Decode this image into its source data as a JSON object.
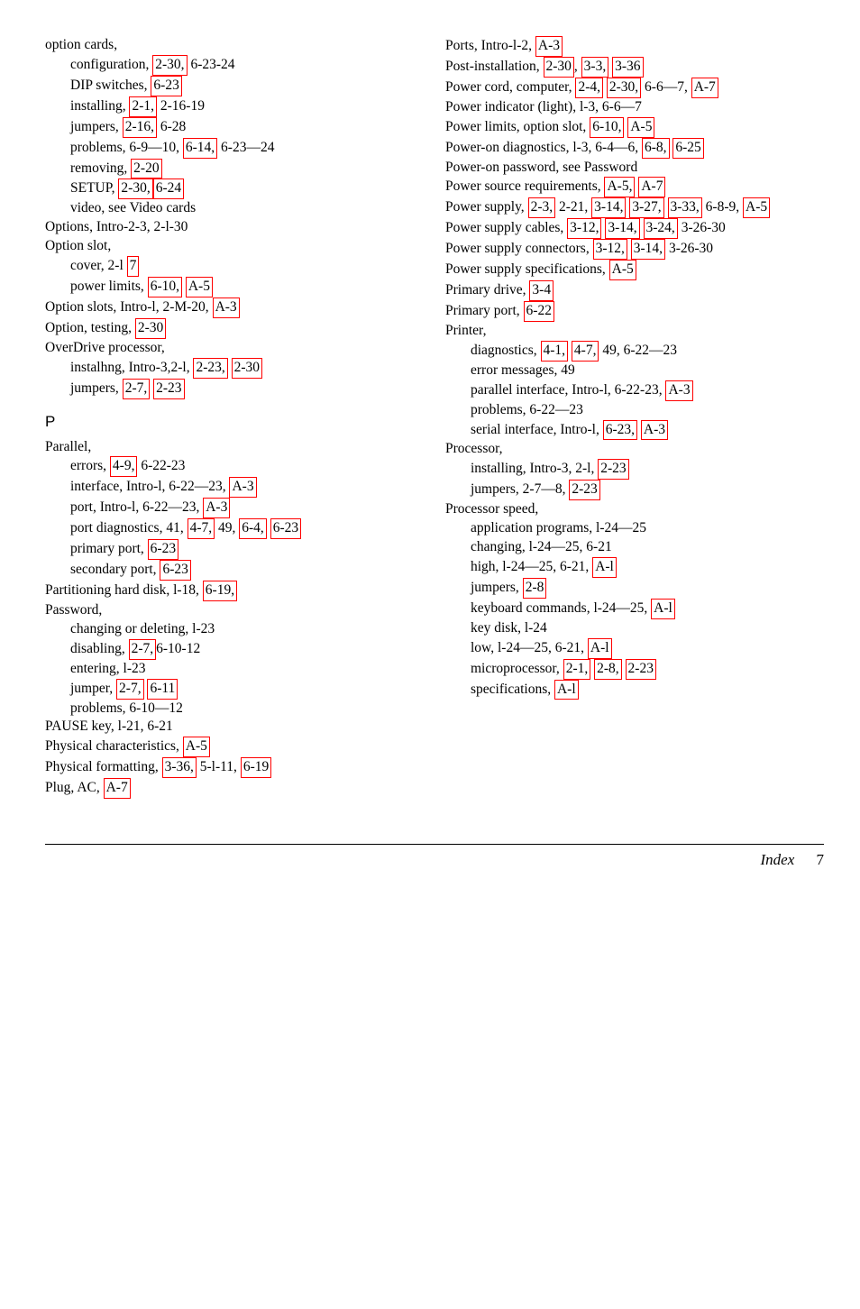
{
  "leftColumn": [
    {
      "type": "entry",
      "parts": [
        {
          "t": "option cards,"
        }
      ]
    },
    {
      "type": "sub",
      "parts": [
        {
          "t": "configuration, "
        },
        {
          "t": "2-30,",
          "l": 1
        },
        {
          "t": " 6-23-24"
        }
      ]
    },
    {
      "type": "sub",
      "parts": [
        {
          "t": "DIP switches, "
        },
        {
          "t": "6-23",
          "l": 1
        }
      ]
    },
    {
      "type": "sub",
      "parts": [
        {
          "t": "installing, "
        },
        {
          "t": "2-1,",
          "l": 1
        },
        {
          "t": " 2-16-19"
        }
      ]
    },
    {
      "type": "sub",
      "parts": [
        {
          "t": "jumpers, "
        },
        {
          "t": "2-16,",
          "l": 1
        },
        {
          "t": " 6-28"
        }
      ]
    },
    {
      "type": "sub",
      "parts": [
        {
          "t": "problems, 6-9—10, "
        },
        {
          "t": "6-14,",
          "l": 1
        },
        {
          "t": " 6-23—24"
        }
      ]
    },
    {
      "type": "sub",
      "parts": [
        {
          "t": "removing, "
        },
        {
          "t": "2-20",
          "l": 1
        }
      ]
    },
    {
      "type": "sub",
      "parts": [
        {
          "t": "SETUP, "
        },
        {
          "t": "2-30,",
          "l": 1
        },
        {
          "t": "6-24",
          "l": 1
        }
      ]
    },
    {
      "type": "sub",
      "parts": [
        {
          "t": "video, see Video cards"
        }
      ]
    },
    {
      "type": "entry",
      "parts": [
        {
          "t": "Options, Intro-2-3, 2-l-30"
        }
      ]
    },
    {
      "type": "entry",
      "parts": [
        {
          "t": "Option slot,"
        }
      ]
    },
    {
      "type": "sub",
      "parts": [
        {
          "t": "cover, 2-l "
        },
        {
          "t": "7",
          "l": 1
        }
      ]
    },
    {
      "type": "sub",
      "parts": [
        {
          "t": "power limits, "
        },
        {
          "t": "6-10,",
          "l": 1
        },
        {
          "t": " "
        },
        {
          "t": "A-5",
          "l": 1
        }
      ]
    },
    {
      "type": "entry",
      "parts": [
        {
          "t": "Option slots, Intro-l, 2-M-20, "
        },
        {
          "t": "A-3",
          "l": 1
        }
      ]
    },
    {
      "type": "entry",
      "parts": [
        {
          "t": "Option, testing, "
        },
        {
          "t": "2-30",
          "l": 1
        }
      ]
    },
    {
      "type": "entry",
      "parts": [
        {
          "t": "OverDrive  processor,"
        }
      ]
    },
    {
      "type": "sub",
      "parts": [
        {
          "t": "instalhng, Intro-3,2-l, "
        },
        {
          "t": "2-23,",
          "l": 1
        },
        {
          "t": " "
        },
        {
          "t": "2-30",
          "l": 1
        }
      ]
    },
    {
      "type": "sub",
      "parts": [
        {
          "t": "jumpers, "
        },
        {
          "t": "2-7,",
          "l": 1
        },
        {
          "t": " "
        },
        {
          "t": "2-23",
          "l": 1
        }
      ]
    },
    {
      "type": "letter",
      "parts": [
        {
          "t": "P"
        }
      ]
    },
    {
      "type": "entry",
      "parts": [
        {
          "t": "Parallel,"
        }
      ]
    },
    {
      "type": "sub",
      "parts": [
        {
          "t": "errors, "
        },
        {
          "t": "4-9,",
          "l": 1
        },
        {
          "t": " 6-22-23"
        }
      ]
    },
    {
      "type": "sub",
      "parts": [
        {
          "t": "interface, Intro-l, 6-22—23, "
        },
        {
          "t": "A-3",
          "l": 1
        }
      ]
    },
    {
      "type": "sub",
      "parts": [
        {
          "t": "port, Intro-l, 6-22—23, "
        },
        {
          "t": "A-3",
          "l": 1
        }
      ]
    },
    {
      "type": "sub",
      "parts": [
        {
          "t": "port diagnostics, 41, "
        },
        {
          "t": "4-7,",
          "l": 1
        },
        {
          "t": " 49, "
        },
        {
          "t": "6-4,",
          "l": 1
        },
        {
          "t": " "
        },
        {
          "t": "6-23",
          "l": 1
        }
      ]
    },
    {
      "type": "sub",
      "parts": [
        {
          "t": "primary port, "
        },
        {
          "t": "6-23",
          "l": 1
        }
      ]
    },
    {
      "type": "sub",
      "parts": [
        {
          "t": "secondary port, "
        },
        {
          "t": "6-23",
          "l": 1
        }
      ]
    },
    {
      "type": "entry",
      "parts": [
        {
          "t": "Partitioning hard disk, l-18, "
        },
        {
          "t": "6-19,",
          "l": 1
        }
      ]
    },
    {
      "type": "entry",
      "parts": [
        {
          "t": "Password,"
        }
      ]
    },
    {
      "type": "sub",
      "parts": [
        {
          "t": "changing or deleting, l-23"
        }
      ]
    },
    {
      "type": "sub",
      "parts": [
        {
          "t": "disabling, "
        },
        {
          "t": "2-7,",
          "l": 1
        },
        {
          "t": "6-10-12"
        }
      ]
    },
    {
      "type": "sub",
      "parts": [
        {
          "t": "entering, l-23"
        }
      ]
    },
    {
      "type": "sub",
      "parts": [
        {
          "t": "jumper, "
        },
        {
          "t": "2-7,",
          "l": 1
        },
        {
          "t": " "
        },
        {
          "t": "6-11",
          "l": 1
        }
      ]
    },
    {
      "type": "sub",
      "parts": [
        {
          "t": "problems, 6-10—12"
        }
      ]
    },
    {
      "type": "entry",
      "parts": [
        {
          "t": "PAUSE key, l-21, 6-21"
        }
      ]
    },
    {
      "type": "entry",
      "parts": [
        {
          "t": "Physical characteristics, "
        },
        {
          "t": "A-5",
          "l": 1
        }
      ]
    },
    {
      "type": "entry",
      "parts": [
        {
          "t": "Physical formatting, "
        },
        {
          "t": "3-36,",
          "l": 1
        },
        {
          "t": " 5-l-11, "
        },
        {
          "t": "6-19",
          "l": 1
        }
      ]
    },
    {
      "type": "entry",
      "parts": [
        {
          "t": "Plug,  AC, "
        },
        {
          "t": " A-7",
          "l": 1
        }
      ]
    }
  ],
  "rightColumn": [
    {
      "type": "entry",
      "parts": [
        {
          "t": "Ports, Intro-l-2, "
        },
        {
          "t": "A-3",
          "l": 1
        }
      ]
    },
    {
      "type": "entry",
      "parts": [
        {
          "t": "Post-installation, "
        },
        {
          "t": "2-30 ",
          "l": 1
        },
        {
          "t": ", "
        },
        {
          "t": "3-3,",
          "l": 1
        },
        {
          "t": " "
        },
        {
          "t": "3-36",
          "l": 1
        }
      ]
    },
    {
      "type": "entry",
      "parts": [
        {
          "t": "Power cord, computer, "
        },
        {
          "t": "2-4,",
          "l": 1
        },
        {
          "t": " "
        },
        {
          "t": "2-30,",
          "l": 1
        },
        {
          "t": " 6-6—7, "
        },
        {
          "t": "A-7",
          "l": 1
        }
      ]
    },
    {
      "type": "entry",
      "parts": [
        {
          "t": "Power indicator (light), l-3, 6-6—7"
        }
      ]
    },
    {
      "type": "entry",
      "parts": [
        {
          "t": "Power limits, option slot, "
        },
        {
          "t": "6-10,",
          "l": 1
        },
        {
          "t": " "
        },
        {
          "t": "A-5",
          "l": 1
        }
      ]
    },
    {
      "type": "entry",
      "parts": [
        {
          "t": "Power-on diagnostics, l-3, 6-4—6, "
        },
        {
          "t": "6-8,",
          "l": 1
        },
        {
          "t": " "
        },
        {
          "t": "6-25",
          "l": 1
        }
      ]
    },
    {
      "type": "entry",
      "parts": [
        {
          "t": "Power-on password, see Password"
        }
      ]
    },
    {
      "type": "entry",
      "parts": [
        {
          "t": "Power source requirements, "
        },
        {
          "t": "A-5,",
          "l": 1
        },
        {
          "t": " "
        },
        {
          "t": "A-7",
          "l": 1
        }
      ]
    },
    {
      "type": "entry",
      "parts": [
        {
          "t": "Power supply, "
        },
        {
          "t": "2-3,",
          "l": 1
        },
        {
          "t": " 2-21, "
        },
        {
          "t": "3-14,",
          "l": 1
        },
        {
          "t": " "
        },
        {
          "t": "3-27,",
          "l": 1
        },
        {
          "t": " "
        },
        {
          "t": "3-33,",
          "l": 1
        },
        {
          "t": " 6-8-9, "
        },
        {
          "t": "A-5",
          "l": 1
        }
      ]
    },
    {
      "type": "entry",
      "parts": [
        {
          "t": "Power supply cables, "
        },
        {
          "t": "3-12,",
          "l": 1
        },
        {
          "t": " "
        },
        {
          "t": "3-14,",
          "l": 1
        },
        {
          "t": " "
        },
        {
          "t": "3-24,",
          "l": 1
        },
        {
          "t": " 3-26-30"
        }
      ]
    },
    {
      "type": "entry",
      "parts": [
        {
          "t": "Power supply connectors, "
        },
        {
          "t": "3-12,",
          "l": 1
        },
        {
          "t": " "
        },
        {
          "t": "3-14,",
          "l": 1
        },
        {
          "t": " 3-26-30"
        }
      ]
    },
    {
      "type": "entry",
      "parts": [
        {
          "t": "Power supply specifications, "
        },
        {
          "t": "A-5",
          "l": 1
        }
      ]
    },
    {
      "type": "entry",
      "parts": [
        {
          "t": "Primary drive, "
        },
        {
          "t": "3-4",
          "l": 1
        }
      ]
    },
    {
      "type": "entry",
      "parts": [
        {
          "t": "Primary port, "
        },
        {
          "t": "6-22",
          "l": 1
        }
      ]
    },
    {
      "type": "entry",
      "parts": [
        {
          "t": "Printer,"
        }
      ]
    },
    {
      "type": "sub",
      "parts": [
        {
          "t": "diagnostics, "
        },
        {
          "t": "4-1,",
          "l": 1
        },
        {
          "t": " "
        },
        {
          "t": "4-7,",
          "l": 1
        },
        {
          "t": " 49, 6-22—23"
        }
      ]
    },
    {
      "type": "sub",
      "parts": [
        {
          "t": "error messages, 49"
        }
      ]
    },
    {
      "type": "sub",
      "parts": [
        {
          "t": "parallel interface, Intro-l, 6-22-23, "
        },
        {
          "t": "A-3",
          "l": 1
        }
      ]
    },
    {
      "type": "sub",
      "parts": [
        {
          "t": "problems, 6-22—23"
        }
      ]
    },
    {
      "type": "sub",
      "parts": [
        {
          "t": "serial interface, Intro-l, "
        },
        {
          "t": "6-23,",
          "l": 1
        },
        {
          "t": " "
        },
        {
          "t": "A-3",
          "l": 1
        }
      ]
    },
    {
      "type": "entry",
      "parts": [
        {
          "t": "Processor,"
        }
      ]
    },
    {
      "type": "sub",
      "parts": [
        {
          "t": "installing, Intro-3, 2-l, "
        },
        {
          "t": "2-23",
          "l": 1
        }
      ]
    },
    {
      "type": "sub",
      "parts": [
        {
          "t": "jumpers, 2-7—8, "
        },
        {
          "t": "2-23",
          "l": 1
        }
      ]
    },
    {
      "type": "entry",
      "parts": [
        {
          "t": "Processor  speed,"
        }
      ]
    },
    {
      "type": "sub",
      "parts": [
        {
          "t": "application programs, l-24—25"
        }
      ]
    },
    {
      "type": "sub",
      "parts": [
        {
          "t": "changing, l-24—25, 6-21"
        }
      ]
    },
    {
      "type": "sub",
      "parts": [
        {
          "t": "high, l-24—25, 6-21, "
        },
        {
          "t": "A-l",
          "l": 1
        }
      ]
    },
    {
      "type": "sub",
      "parts": [
        {
          "t": "jumpers, "
        },
        {
          "t": "2-8",
          "l": 1
        }
      ]
    },
    {
      "type": "sub",
      "parts": [
        {
          "t": "keyboard commands, l-24—25, "
        },
        {
          "t": "A-l",
          "l": 1
        }
      ]
    },
    {
      "type": "sub",
      "parts": [
        {
          "t": "key disk, l-24"
        }
      ]
    },
    {
      "type": "sub",
      "parts": [
        {
          "t": "low, l-24—25, 6-21, "
        },
        {
          "t": "A-l",
          "l": 1
        }
      ]
    },
    {
      "type": "sub",
      "parts": [
        {
          "t": "microprocessor, "
        },
        {
          "t": "2-1,",
          "l": 1
        },
        {
          "t": " "
        },
        {
          "t": "2-8,",
          "l": 1
        },
        {
          "t": " "
        },
        {
          "t": "2-23",
          "l": 1
        }
      ]
    },
    {
      "type": "sub",
      "parts": [
        {
          "t": "specifications, "
        },
        {
          "t": "A-l",
          "l": 1
        }
      ]
    }
  ],
  "footer": {
    "label": "Index",
    "page": "7"
  }
}
